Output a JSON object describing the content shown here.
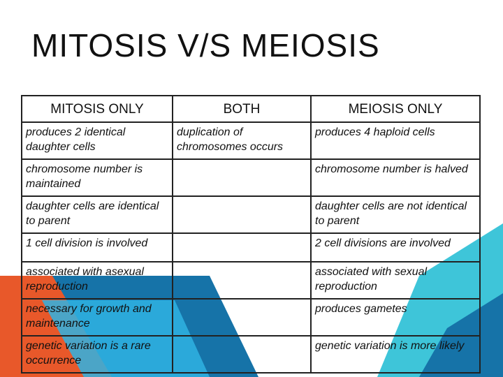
{
  "title": "MITOSIS V/S MEIOSIS",
  "table": {
    "headers": [
      "MITOSIS ONLY",
      "BOTH",
      "MEIOSIS ONLY"
    ],
    "rows": [
      [
        "produces 2 identical daughter cells",
        "duplication of chromosomes occurs",
        "produces 4 haploid cells"
      ],
      [
        "chromosome number is maintained",
        "",
        "chromosome number is halved"
      ],
      [
        "daughter cells are identical to parent",
        "",
        "daughter cells are not identical to parent"
      ],
      [
        "1 cell division is involved",
        "",
        "2 cell divisions are involved"
      ],
      [
        "associated with asexual reproduction",
        "",
        "associated with sexual reproduction"
      ],
      [
        "necessary for growth and maintenance",
        "",
        "produces gametes"
      ],
      [
        "genetic variation is a rare occurrence",
        "",
        "genetic variation is more likely"
      ]
    ]
  },
  "colors": {
    "orange": "#e8582a",
    "dark_blue": "#1673a8",
    "light_blue": "#2fb3e3",
    "teal": "#3ec5d9"
  }
}
